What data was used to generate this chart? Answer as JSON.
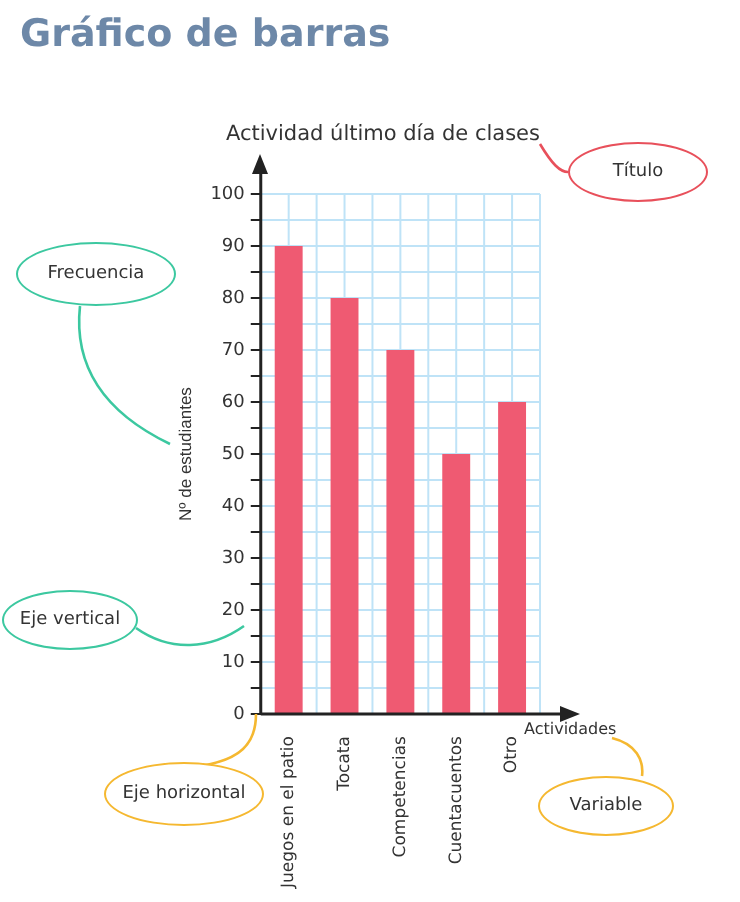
{
  "chart_data": {
    "type": "bar",
    "title": "Actividad último día de clases",
    "xlabel": "Actividades",
    "ylabel": "Nº de estudiantes",
    "categories": [
      "Juegos en el patio",
      "Tocata",
      "Competencias",
      "Cuentacuentos",
      "Otro"
    ],
    "values": [
      90,
      80,
      70,
      50,
      60
    ],
    "color": "#ef5a72",
    "ylim": [
      0,
      100
    ],
    "yticks": [
      0,
      {
        "value": 5,
        "label": null
      },
      10,
      {
        "value": 15,
        "label": null
      },
      20,
      {
        "value": 25,
        "label": null
      },
      30,
      {
        "value": 35,
        "label": null
      },
      40,
      {
        "value": 45,
        "label": null
      },
      50,
      {
        "value": 55,
        "label": null
      },
      60,
      {
        "value": 65,
        "label": null
      },
      70,
      {
        "value": 75,
        "label": null
      },
      80,
      {
        "value": 85,
        "label": null
      },
      90,
      {
        "value": 95,
        "label": null
      },
      100
    ],
    "grid": true,
    "annotations": [
      "Gráfico de barras",
      "Título",
      "Frecuencia",
      "Eje vertical",
      "Eje horizontal",
      "Variable"
    ]
  }
}
